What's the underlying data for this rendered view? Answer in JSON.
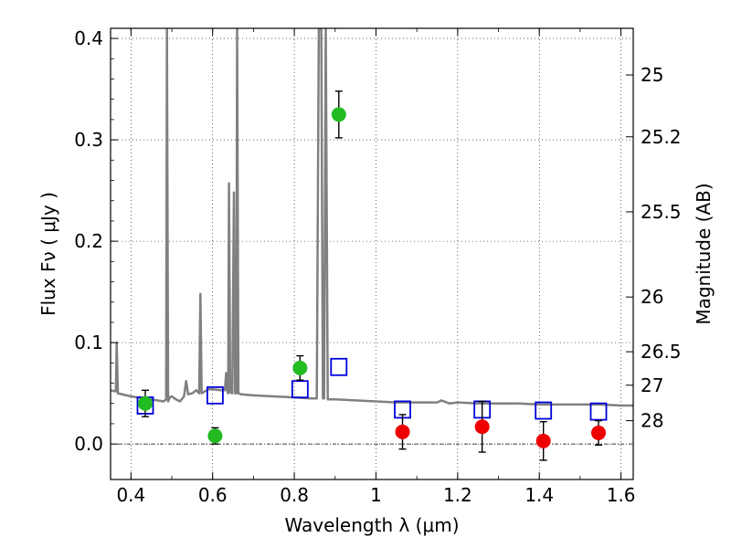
{
  "chart_data": {
    "type": "scatter",
    "xlabel": "Wavelength  λ (μm)",
    "ylabel": "Flux  Fν  ( μJy )",
    "ylabel_right": "Magnitude (AB)",
    "xlim": [
      0.35,
      1.63
    ],
    "ylim": [
      -0.035,
      0.41
    ],
    "grid": true,
    "x_ticks": [
      0.4,
      0.6,
      0.8,
      1.0,
      1.2,
      1.4,
      1.6
    ],
    "x_tick_labels": [
      "0.4",
      "0.6",
      "0.8",
      "1",
      "1.2",
      "1.4",
      "1.6"
    ],
    "y_ticks": [
      0.0,
      0.1,
      0.2,
      0.3,
      0.4
    ],
    "y_tick_labels": [
      "0.0",
      "0.1",
      "0.2",
      "0.3",
      "0.4"
    ],
    "right_ticks": [
      {
        "label": "25",
        "flux": 0.364
      },
      {
        "label": "25.2",
        "flux": 0.303
      },
      {
        "label": "25.5",
        "flux": 0.229
      },
      {
        "label": "26",
        "flux": 0.145
      },
      {
        "label": "26.5",
        "flux": 0.091
      },
      {
        "label": "27",
        "flux": 0.058
      },
      {
        "label": "28",
        "flux": 0.023
      }
    ],
    "series": [
      {
        "kind": "model_sed_line",
        "color": "#808080",
        "points": [
          [
            0.35,
            0.053
          ],
          [
            0.36,
            0.052
          ],
          [
            0.363,
            0.052
          ],
          [
            0.365,
            0.1
          ],
          [
            0.368,
            0.05
          ],
          [
            0.4,
            0.047
          ],
          [
            0.45,
            0.044
          ],
          [
            0.48,
            0.042
          ],
          [
            0.486,
            0.044
          ],
          [
            0.488,
            0.41
          ],
          [
            0.491,
            0.042
          ],
          [
            0.495,
            0.046
          ],
          [
            0.5,
            0.047
          ],
          [
            0.51,
            0.044
          ],
          [
            0.52,
            0.042
          ],
          [
            0.53,
            0.047
          ],
          [
            0.535,
            0.062
          ],
          [
            0.54,
            0.049
          ],
          [
            0.55,
            0.05
          ],
          [
            0.56,
            0.053
          ],
          [
            0.567,
            0.05
          ],
          [
            0.57,
            0.148
          ],
          [
            0.573,
            0.05
          ],
          [
            0.59,
            0.054
          ],
          [
            0.6,
            0.054
          ],
          [
            0.62,
            0.053
          ],
          [
            0.63,
            0.053
          ],
          [
            0.633,
            0.07
          ],
          [
            0.636,
            0.052
          ],
          [
            0.638,
            0.05
          ],
          [
            0.64,
            0.257
          ],
          [
            0.643,
            0.051
          ],
          [
            0.648,
            0.05
          ],
          [
            0.652,
            0.248
          ],
          [
            0.655,
            0.05
          ],
          [
            0.658,
            0.05
          ],
          [
            0.66,
            0.41
          ],
          [
            0.663,
            0.05
          ],
          [
            0.67,
            0.049
          ],
          [
            0.7,
            0.048
          ],
          [
            0.75,
            0.047
          ],
          [
            0.8,
            0.046
          ],
          [
            0.84,
            0.045
          ],
          [
            0.855,
            0.045
          ],
          [
            0.86,
            0.41
          ],
          [
            0.866,
            0.41
          ],
          [
            0.87,
            0.045
          ],
          [
            0.873,
            0.045
          ],
          [
            0.877,
            0.41
          ],
          [
            0.882,
            0.044
          ],
          [
            0.9,
            0.044
          ],
          [
            0.95,
            0.043
          ],
          [
            1.0,
            0.042
          ],
          [
            1.05,
            0.041
          ],
          [
            1.1,
            0.041
          ],
          [
            1.15,
            0.041
          ],
          [
            1.16,
            0.043
          ],
          [
            1.18,
            0.04
          ],
          [
            1.2,
            0.041
          ],
          [
            1.25,
            0.04
          ],
          [
            1.3,
            0.04
          ],
          [
            1.35,
            0.04
          ],
          [
            1.4,
            0.039
          ],
          [
            1.45,
            0.039
          ],
          [
            1.5,
            0.039
          ],
          [
            1.55,
            0.039
          ],
          [
            1.6,
            0.038
          ],
          [
            1.63,
            0.038
          ]
        ]
      },
      {
        "kind": "detections",
        "marker": "filled-circle",
        "color": "#22bb22",
        "points": [
          {
            "x": 0.435,
            "y": 0.04,
            "err": 0.013
          },
          {
            "x": 0.606,
            "y": 0.008,
            "err": 0.008
          },
          {
            "x": 0.814,
            "y": 0.075,
            "err": 0.012
          },
          {
            "x": 0.909,
            "y": 0.325,
            "err": 0.023
          }
        ]
      },
      {
        "kind": "non_detections",
        "marker": "filled-circle",
        "color": "#ee0000",
        "points": [
          {
            "x": 1.065,
            "y": 0.012,
            "err": 0.017
          },
          {
            "x": 1.26,
            "y": 0.017,
            "err": 0.025
          },
          {
            "x": 1.41,
            "y": 0.003,
            "err": 0.019
          },
          {
            "x": 1.545,
            "y": 0.011,
            "err": 0.012
          }
        ]
      },
      {
        "kind": "model_photometry",
        "marker": "open-square",
        "color": "#0000dd",
        "points": [
          {
            "x": 0.435,
            "y": 0.038
          },
          {
            "x": 0.606,
            "y": 0.048
          },
          {
            "x": 0.814,
            "y": 0.054
          },
          {
            "x": 0.909,
            "y": 0.076
          },
          {
            "x": 1.065,
            "y": 0.034
          },
          {
            "x": 1.26,
            "y": 0.034
          },
          {
            "x": 1.41,
            "y": 0.033
          },
          {
            "x": 1.545,
            "y": 0.032
          }
        ]
      }
    ]
  }
}
